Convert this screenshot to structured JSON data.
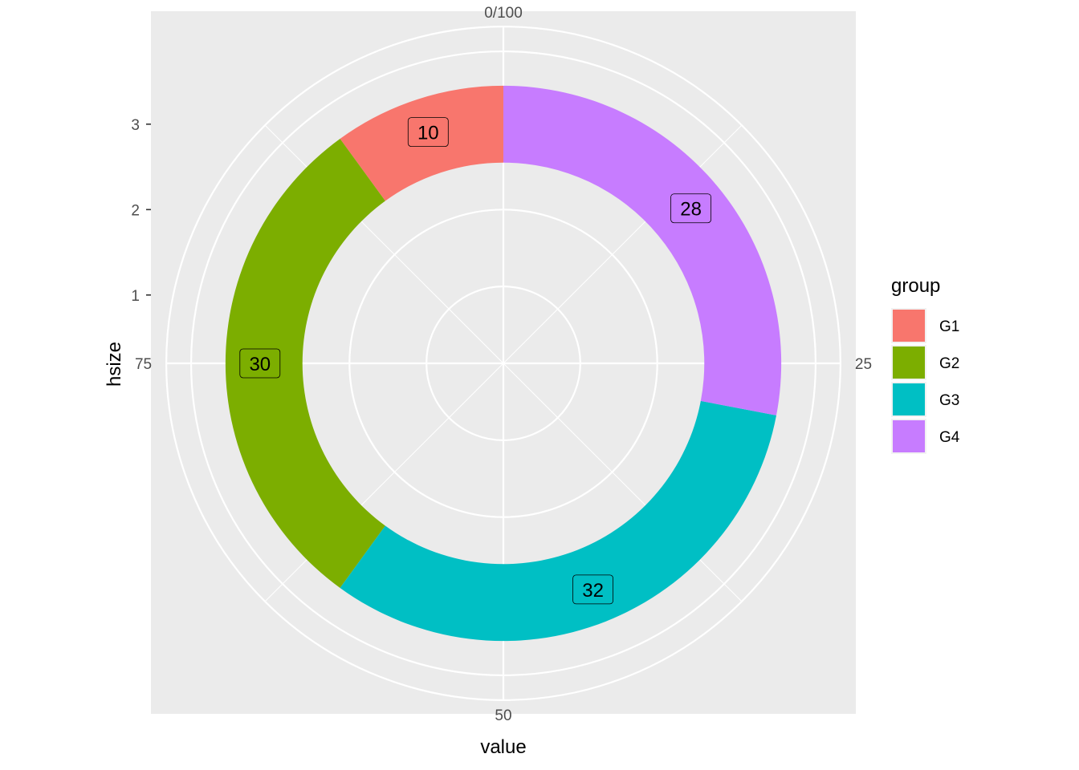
{
  "chart_data": {
    "type": "pie",
    "variant": "donut",
    "xlabel": "value",
    "ylabel": "hsize",
    "theta_ticks": [
      "0/100",
      "25",
      "50",
      "75"
    ],
    "theta_tick_values": [
      0,
      25,
      50,
      75
    ],
    "radial_ticks": [
      "1",
      "2",
      "3"
    ],
    "radial_tick_values": [
      1,
      2,
      3
    ],
    "hsize": 3,
    "legend_title": "group",
    "legend_position": "right",
    "grid": true,
    "slices": [
      {
        "label": "G1",
        "value": 10,
        "color": "#F8766D"
      },
      {
        "label": "G2",
        "value": 30,
        "color": "#7CAE00"
      },
      {
        "label": "G3",
        "value": 32,
        "color": "#00BFC4"
      },
      {
        "label": "G4",
        "value": 28,
        "color": "#C77CFF"
      }
    ]
  }
}
